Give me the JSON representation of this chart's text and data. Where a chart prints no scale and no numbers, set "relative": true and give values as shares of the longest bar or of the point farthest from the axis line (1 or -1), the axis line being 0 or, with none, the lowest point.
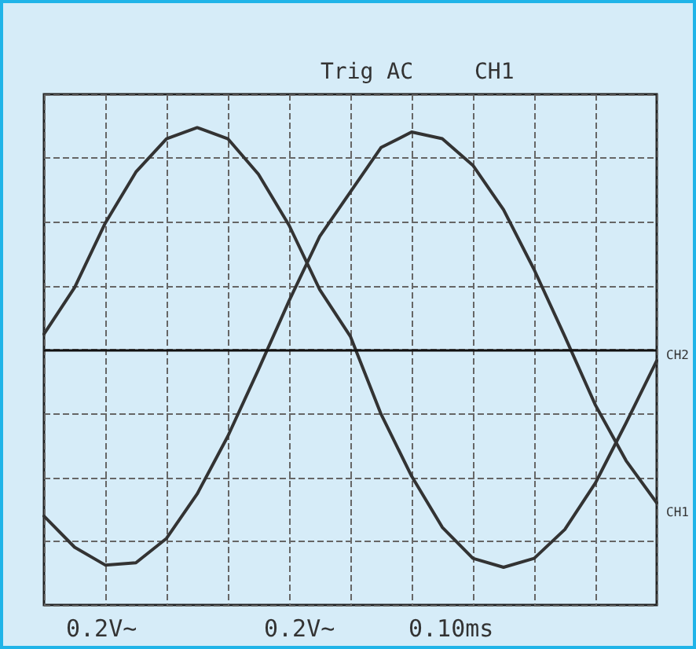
{
  "chart_data": {
    "type": "line",
    "relative": true,
    "grid": true,
    "marker": "none",
    "line_style": "solid",
    "categories": [
      null,
      null,
      null,
      null,
      null,
      null,
      null,
      null,
      null,
      null,
      null,
      null,
      null,
      null,
      null,
      null,
      null,
      null,
      null,
      null,
      null
    ],
    "series": [
      {
        "color": "#333333",
        "values": [
          0.07,
          0.28,
          0.57,
          0.8,
          0.95,
          1.0,
          0.95,
          0.79,
          0.56,
          0.27,
          0.06,
          -0.29,
          -0.57,
          -0.8,
          -0.94,
          -0.98,
          -0.94,
          -0.81,
          -0.6,
          -0.33,
          -0.05
        ]
      },
      {
        "color": "#333333",
        "values": [
          -0.75,
          -0.89,
          -0.97,
          -0.96,
          -0.85,
          -0.65,
          -0.39,
          -0.09,
          0.22,
          0.51,
          0.71,
          0.91,
          0.98,
          0.95,
          0.83,
          0.63,
          0.36,
          0.06,
          -0.25,
          -0.5,
          -0.69
        ]
      }
    ],
    "annotations": [
      "Trig AC",
      "CH1",
      "0.2V~",
      "0.2V~",
      "0.10ms",
      "CH2",
      "CH1"
    ]
  }
}
